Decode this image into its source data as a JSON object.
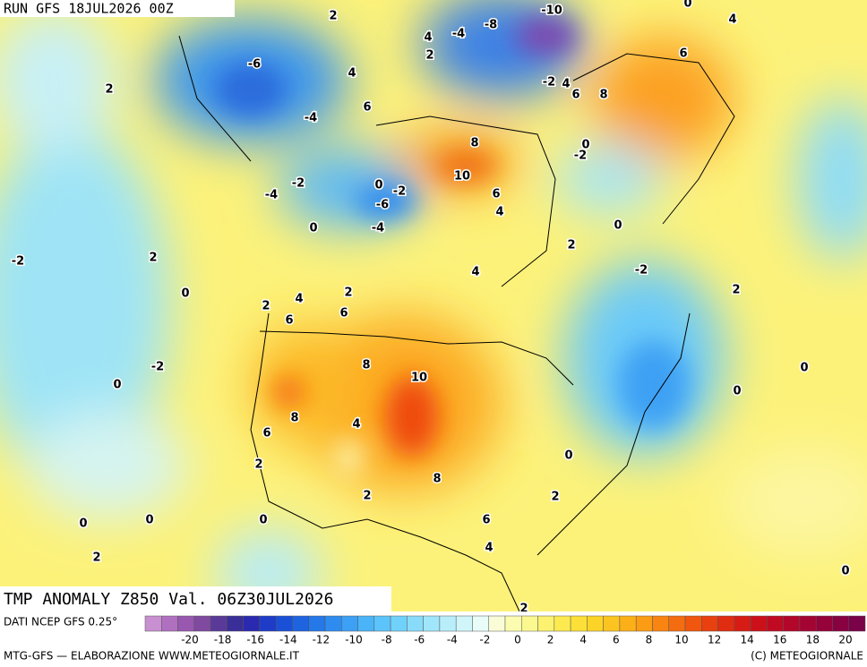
{
  "header": {
    "run": "RUN GFS 18JUL2026 00Z"
  },
  "map": {
    "title": "TMP ANOMALY Z850 Val. 06Z30JUL2026",
    "contour_labels": [
      "2",
      "4",
      "-4",
      "2",
      "-8",
      "-10",
      "-6",
      "2",
      "4",
      "6",
      "4",
      "0",
      "6",
      "-4",
      "-2",
      "4",
      "6",
      "8",
      "8",
      "0",
      "-2",
      "10",
      "-2",
      "-4",
      "0",
      "-2",
      "-6",
      "6",
      "4",
      "0",
      "-4",
      "0",
      "2",
      "-2",
      "2",
      "-2",
      "4",
      "2",
      "0",
      "4",
      "2",
      "2",
      "6",
      "6",
      "8",
      "-2",
      "10",
      "0",
      "0",
      "0",
      "8",
      "4",
      "6",
      "0",
      "2",
      "8",
      "2",
      "2",
      "0",
      "0",
      "0",
      "6",
      "4",
      "2",
      "0",
      "2"
    ]
  },
  "footer": {
    "source": "DATI NCEP GFS 0.25°",
    "credit": "MTG-GFS — ELABORAZIONE WWW.METEOGIORNALE.IT",
    "copyright": "(C) METEOGIORNALE"
  },
  "colorbar": {
    "ticks": [
      -20,
      -18,
      -16,
      -14,
      -12,
      -10,
      -8,
      -6,
      -4,
      -2,
      0,
      2,
      4,
      6,
      8,
      10,
      12,
      14,
      16,
      18,
      20
    ],
    "colors": [
      "#c890d0",
      "#b070c0",
      "#9858b0",
      "#804aa0",
      "#5a3a98",
      "#3a2e98",
      "#2a2ab0",
      "#1e3cc8",
      "#1a50d8",
      "#1e64e0",
      "#2478e8",
      "#2e8cf0",
      "#3ca0f4",
      "#4ab4f8",
      "#5cc4fa",
      "#70d2fa",
      "#88dcfa",
      "#a0e6fa",
      "#b8eefa",
      "#d0f6fa",
      "#e8fcf8",
      "#fafcd8",
      "#fcfcb0",
      "#fcf890",
      "#fcf270",
      "#fcea50",
      "#fce038",
      "#fcd428",
      "#fcc420",
      "#fcb018",
      "#fc9c14",
      "#f88412",
      "#f46c10",
      "#f0560e",
      "#e8400e",
      "#e02c10",
      "#d61c14",
      "#cc101a",
      "#c00a22",
      "#b2062a",
      "#a40432",
      "#96023a",
      "#880242",
      "#7a0248"
    ]
  }
}
